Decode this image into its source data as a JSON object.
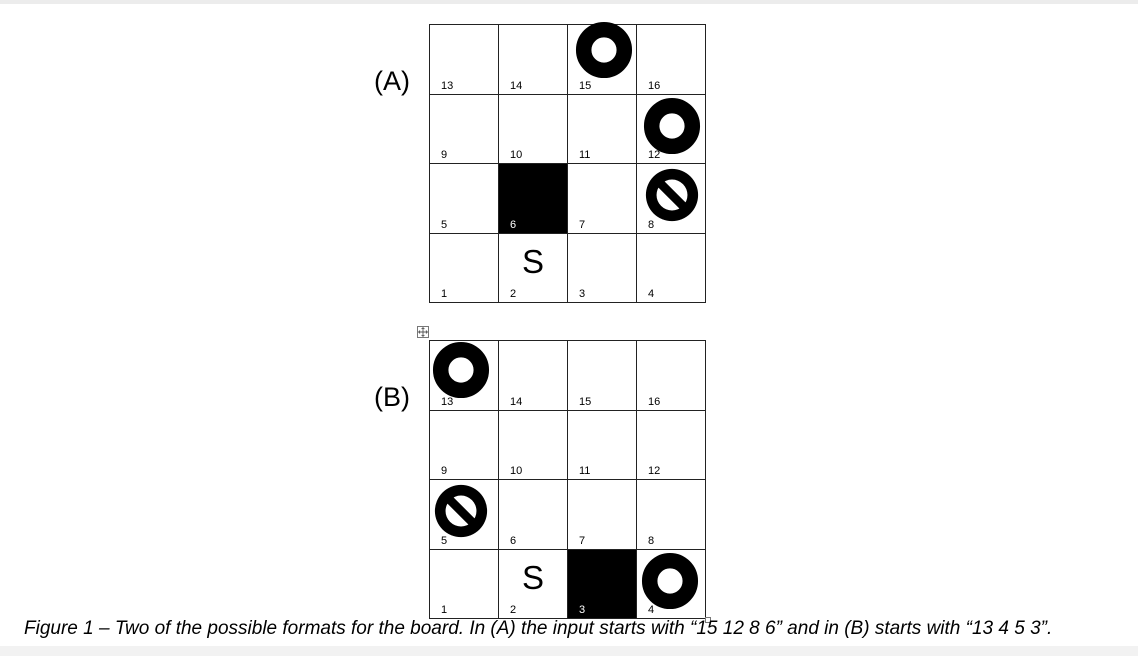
{
  "figure": {
    "caption": "Figure 1 – Two of the possible formats for the board. In (A) the input starts with “15 12 8 6” and in (B) starts with “13 4 5 3”."
  },
  "boards": [
    {
      "label": "(A)",
      "rows": [
        [
          {
            "num": "13"
          },
          {
            "num": "14"
          },
          {
            "num": "15",
            "piece": "ring-icon"
          },
          {
            "num": "16"
          }
        ],
        [
          {
            "num": "9"
          },
          {
            "num": "10"
          },
          {
            "num": "11"
          },
          {
            "num": "12",
            "piece": "ring-icon"
          }
        ],
        [
          {
            "num": "5"
          },
          {
            "num": "6",
            "blocked": true
          },
          {
            "num": "7"
          },
          {
            "num": "8",
            "piece": "no-entry-icon"
          }
        ],
        [
          {
            "num": "1"
          },
          {
            "num": "2",
            "start": "S"
          },
          {
            "num": "3"
          },
          {
            "num": "4"
          }
        ]
      ]
    },
    {
      "label": "(B)",
      "rows": [
        [
          {
            "num": "13",
            "piece": "ring-icon"
          },
          {
            "num": "14"
          },
          {
            "num": "15"
          },
          {
            "num": "16"
          }
        ],
        [
          {
            "num": "9"
          },
          {
            "num": "10"
          },
          {
            "num": "11"
          },
          {
            "num": "12"
          }
        ],
        [
          {
            "num": "5",
            "piece": "no-entry-icon"
          },
          {
            "num": "6"
          },
          {
            "num": "7"
          },
          {
            "num": "8"
          }
        ],
        [
          {
            "num": "1"
          },
          {
            "num": "2",
            "start": "S"
          },
          {
            "num": "3",
            "blocked": true
          },
          {
            "num": "4",
            "piece": "ring-icon"
          }
        ]
      ]
    }
  ],
  "colors": {
    "grid_line": "#222222",
    "piece": "#000000",
    "blocked_cell": "#000000"
  }
}
